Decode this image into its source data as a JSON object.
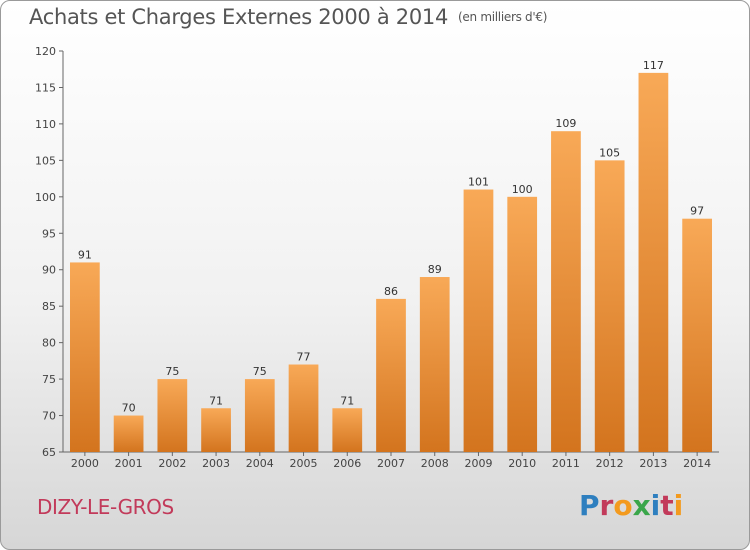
{
  "header": {
    "title": "Achats et Charges Externes 2000 à 2014",
    "unit": "(en milliers d'€)"
  },
  "footer": {
    "commune": "DIZY-LE-GROS",
    "logo_text": "Proxiti"
  },
  "colors": {
    "bar_light": "#f8a957",
    "bar_dark": "#d3741e",
    "commune": "#c23a5a",
    "logo_letters": [
      "#2e7fbf",
      "#c23a5a",
      "#f39a1e",
      "#3aa64a",
      "#2e7fbf",
      "#c23a5a",
      "#f39a1e"
    ]
  },
  "chart_data": {
    "type": "bar",
    "title": "Achats et Charges Externes 2000 à 2014",
    "subtitle": "(en milliers d'€)",
    "xlabel": "",
    "ylabel": "",
    "categories": [
      "2000",
      "2001",
      "2002",
      "2003",
      "2004",
      "2005",
      "2006",
      "2007",
      "2008",
      "2009",
      "2010",
      "2011",
      "2012",
      "2013",
      "2014"
    ],
    "values": [
      91,
      70,
      75,
      71,
      75,
      77,
      71,
      86,
      89,
      101,
      100,
      109,
      105,
      117,
      97
    ],
    "ylim": [
      65,
      120
    ],
    "yticks": [
      65,
      70,
      75,
      80,
      85,
      90,
      95,
      100,
      105,
      110,
      115,
      120
    ],
    "grid": false
  }
}
